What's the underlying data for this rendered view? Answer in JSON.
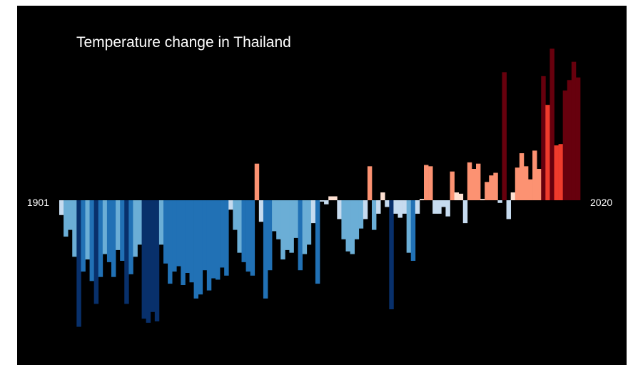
{
  "chart_data": {
    "type": "bar",
    "title": "Temperature change in Thailand",
    "start_label": "1901",
    "end_label": "2020",
    "x_start": 1901,
    "x_end": 2020,
    "ylim": [
      -0.99,
      1.2
    ],
    "colors": {
      "background": "#000000",
      "text": "#ffffff",
      "cold_extreme": "#08306b",
      "cold": "#2171b5",
      "cool": "#6baed6",
      "cool_light": "#c6dbef",
      "warm_light": "#fee0d2",
      "warm": "#fc9272",
      "hot": "#ef3b2c",
      "hot_extreme": "#67000d"
    },
    "values": [
      -0.11,
      -0.27,
      -0.22,
      -0.42,
      -0.94,
      -0.53,
      -0.44,
      -0.6,
      -0.77,
      -0.57,
      -0.4,
      -0.46,
      -0.57,
      -0.37,
      -0.45,
      -0.77,
      -0.55,
      -0.42,
      -0.33,
      -0.88,
      -0.91,
      -0.83,
      -0.9,
      -0.33,
      -0.47,
      -0.62,
      -0.53,
      -0.49,
      -0.63,
      -0.54,
      -0.61,
      -0.73,
      -0.7,
      -0.52,
      -0.67,
      -0.58,
      -0.59,
      -0.5,
      -0.56,
      -0.07,
      -0.22,
      -0.39,
      -0.46,
      -0.53,
      -0.56,
      0.28,
      -0.16,
      -0.73,
      -0.52,
      -0.23,
      -0.29,
      -0.44,
      -0.37,
      -0.39,
      -0.28,
      -0.52,
      -0.4,
      -0.33,
      -0.17,
      -0.62,
      -0.01,
      -0.03,
      0.03,
      0.03,
      -0.14,
      -0.29,
      -0.38,
      -0.4,
      -0.29,
      -0.21,
      -0.14,
      0.26,
      -0.22,
      -0.1,
      0.06,
      -0.05,
      -0.81,
      -0.1,
      -0.13,
      -0.1,
      -0.39,
      -0.45,
      -0.1,
      0.01,
      0.27,
      0.26,
      -0.1,
      -0.1,
      -0.05,
      -0.12,
      0.22,
      0.06,
      0.05,
      -0.17,
      0.29,
      0.24,
      0.28,
      0.01,
      0.14,
      0.19,
      0.21,
      -0.02,
      0.98,
      -0.14,
      0.06,
      0.25,
      0.36,
      0.26,
      0.16,
      0.38,
      0.24,
      0.95,
      0.73,
      1.16,
      0.42,
      0.43,
      0.84,
      0.92,
      1.06,
      0.94
    ]
  }
}
